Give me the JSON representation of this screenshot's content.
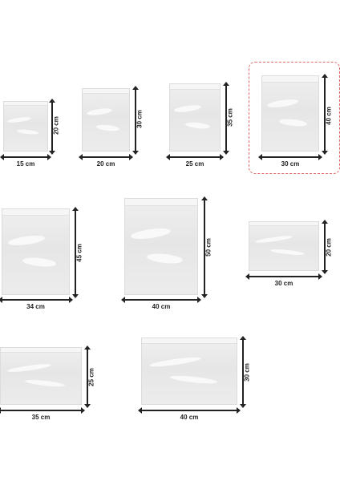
{
  "items": [
    {
      "id": "bag-15x20",
      "width_label": "15 cm",
      "height_label": "20 cm"
    },
    {
      "id": "bag-20x30",
      "width_label": "20 cm",
      "height_label": "30 cm"
    },
    {
      "id": "bag-25x35",
      "width_label": "25 cm",
      "height_label": "35 cm"
    },
    {
      "id": "bag-30x40",
      "width_label": "30 cm",
      "height_label": "40 cm",
      "selected": true
    },
    {
      "id": "bag-34x45",
      "width_label": "34 cm",
      "height_label": "45 cm"
    },
    {
      "id": "bag-40x50",
      "width_label": "40 cm",
      "height_label": "50 cm"
    },
    {
      "id": "bag-30x20",
      "width_label": "30 cm",
      "height_label": "20 cm"
    },
    {
      "id": "bag-35x25",
      "width_label": "35 cm",
      "height_label": "25 cm"
    },
    {
      "id": "bag-40x30",
      "width_label": "40 cm",
      "height_label": "30 cm"
    }
  ],
  "colors": {
    "selection_border": "#e06a6a",
    "dimension_line": "#222222",
    "bag_fill": "#e9e9e9"
  }
}
